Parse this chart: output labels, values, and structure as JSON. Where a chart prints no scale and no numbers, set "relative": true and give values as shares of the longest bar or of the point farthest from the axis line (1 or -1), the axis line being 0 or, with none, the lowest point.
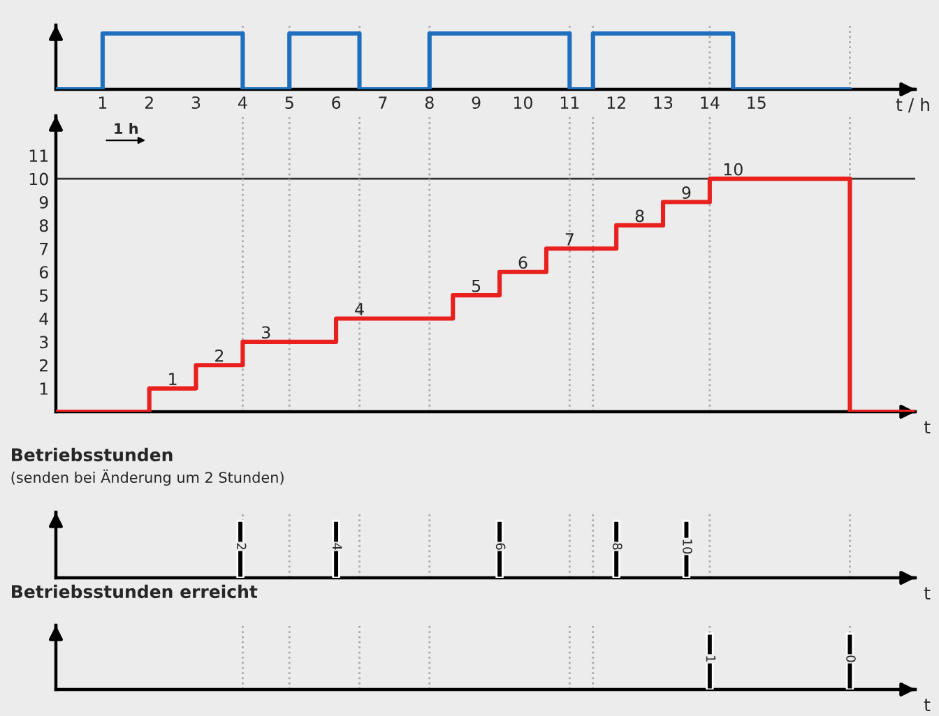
{
  "chart_data": [
    {
      "type": "step",
      "relative": true,
      "xlabel": "t / h",
      "xlim": [
        0,
        18.4
      ],
      "xticks": [
        1,
        2,
        3,
        4,
        5,
        6,
        7,
        8,
        9,
        10,
        11,
        12,
        13,
        14,
        15
      ],
      "tick_labels": "x",
      "x": [
        0,
        1,
        4,
        5,
        6.5,
        8,
        11,
        11.5,
        14.5,
        17
      ],
      "series": [
        {
          "color": "#1f6fbf",
          "values": [
            0,
            1,
            0,
            1,
            0,
            1,
            0,
            1,
            0,
            0
          ]
        }
      ],
      "ref_lines": [
        {
          "axis": "x",
          "value": 4,
          "color": "#aaaaaa",
          "line_style": "dotted"
        },
        {
          "axis": "x",
          "value": 5,
          "color": "#aaaaaa",
          "line_style": "dotted"
        },
        {
          "axis": "x",
          "value": 6.5,
          "color": "#aaaaaa",
          "line_style": "dotted"
        },
        {
          "axis": "x",
          "value": 8,
          "color": "#aaaaaa",
          "line_style": "dotted"
        },
        {
          "axis": "x",
          "value": 11,
          "color": "#aaaaaa",
          "line_style": "dotted"
        },
        {
          "axis": "x",
          "value": 11.5,
          "color": "#aaaaaa",
          "line_style": "dotted"
        },
        {
          "axis": "x",
          "value": 14,
          "color": "#aaaaaa",
          "line_style": "dotted"
        },
        {
          "axis": "x",
          "value": 17,
          "color": "#aaaaaa",
          "line_style": "dotted"
        }
      ]
    },
    {
      "type": "step",
      "xlabel": "t",
      "xlim": [
        0,
        18.4
      ],
      "ylim": [
        0,
        12.7
      ],
      "yticks": [
        1,
        2,
        3,
        4,
        5,
        6,
        7,
        8,
        9,
        10,
        11
      ],
      "tick_labels": "y",
      "x": [
        0,
        2,
        3,
        4,
        6,
        8.5,
        9.5,
        10.5,
        12,
        13,
        14,
        17,
        18.4
      ],
      "series": [
        {
          "color": "#e8201e",
          "values": [
            0,
            1,
            2,
            3,
            4,
            5,
            6,
            7,
            8,
            9,
            10,
            0,
            0
          ],
          "value_labels": [
            null,
            "1",
            "2",
            "3",
            "4",
            "5",
            "6",
            "7",
            "8",
            "9",
            "10",
            null,
            null
          ]
        }
      ],
      "annotations": [
        "1 h"
      ],
      "ref_lines": [
        {
          "axis": "y",
          "value": 10,
          "color": "#333333",
          "line_style": "solid"
        },
        {
          "axis": "x",
          "value": 4,
          "color": "#aaaaaa",
          "line_style": "dotted"
        },
        {
          "axis": "x",
          "value": 5,
          "color": "#aaaaaa",
          "line_style": "dotted"
        },
        {
          "axis": "x",
          "value": 6.5,
          "color": "#aaaaaa",
          "line_style": "dotted"
        },
        {
          "axis": "x",
          "value": 8,
          "color": "#aaaaaa",
          "line_style": "dotted"
        },
        {
          "axis": "x",
          "value": 11,
          "color": "#aaaaaa",
          "line_style": "dotted"
        },
        {
          "axis": "x",
          "value": 11.5,
          "color": "#aaaaaa",
          "line_style": "dotted"
        },
        {
          "axis": "x",
          "value": 14,
          "color": "#aaaaaa",
          "line_style": "dotted"
        },
        {
          "axis": "x",
          "value": 17,
          "color": "#aaaaaa",
          "line_style": "dotted"
        }
      ]
    },
    {
      "type": "bar",
      "relative": true,
      "title": "Betriebsstunden",
      "subtitle": "(senden bei Änderung um 2 Stunden)",
      "xlabel": "t",
      "xlim": [
        0,
        18.4
      ],
      "tick_labels": false,
      "x": [
        3.95,
        6,
        9.5,
        12,
        13.5
      ],
      "series": [
        {
          "color": "#000000",
          "values": [
            1,
            1,
            1,
            1,
            1
          ]
        }
      ],
      "annotations": [
        {
          "text": "2",
          "x": 3.95,
          "y": 0.55
        },
        {
          "text": "4",
          "x": 6,
          "y": 0.55
        },
        {
          "text": "6",
          "x": 9.5,
          "y": 0.55
        },
        {
          "text": "8",
          "x": 12,
          "y": 0.55
        },
        {
          "text": "10",
          "x": 13.5,
          "y": 0.55
        }
      ],
      "ref_lines": [
        {
          "axis": "x",
          "value": 4,
          "color": "#aaaaaa",
          "line_style": "dotted"
        },
        {
          "axis": "x",
          "value": 5,
          "color": "#aaaaaa",
          "line_style": "dotted"
        },
        {
          "axis": "x",
          "value": 6.5,
          "color": "#aaaaaa",
          "line_style": "dotted"
        },
        {
          "axis": "x",
          "value": 8,
          "color": "#aaaaaa",
          "line_style": "dotted"
        },
        {
          "axis": "x",
          "value": 11,
          "color": "#aaaaaa",
          "line_style": "dotted"
        },
        {
          "axis": "x",
          "value": 11.5,
          "color": "#aaaaaa",
          "line_style": "dotted"
        },
        {
          "axis": "x",
          "value": 14,
          "color": "#aaaaaa",
          "line_style": "dotted"
        },
        {
          "axis": "x",
          "value": 17,
          "color": "#aaaaaa",
          "line_style": "dotted"
        }
      ]
    },
    {
      "type": "bar",
      "relative": true,
      "title": "Betriebsstunden erreicht",
      "xlabel": "t",
      "xlim": [
        0,
        18.4
      ],
      "tick_labels": false,
      "x": [
        14,
        17
      ],
      "series": [
        {
          "color": "#000000",
          "values": [
            1,
            1
          ]
        }
      ],
      "annotations": [
        {
          "text": "1",
          "x": 14,
          "y": 0.55
        },
        {
          "text": "0",
          "x": 17,
          "y": 0.55
        }
      ],
      "ref_lines": [
        {
          "axis": "x",
          "value": 4,
          "color": "#aaaaaa",
          "line_style": "dotted"
        },
        {
          "axis": "x",
          "value": 5,
          "color": "#aaaaaa",
          "line_style": "dotted"
        },
        {
          "axis": "x",
          "value": 6.5,
          "color": "#aaaaaa",
          "line_style": "dotted"
        },
        {
          "axis": "x",
          "value": 8,
          "color": "#aaaaaa",
          "line_style": "dotted"
        },
        {
          "axis": "x",
          "value": 11,
          "color": "#aaaaaa",
          "line_style": "dotted"
        },
        {
          "axis": "x",
          "value": 11.5,
          "color": "#aaaaaa",
          "line_style": "dotted"
        },
        {
          "axis": "x",
          "value": 14,
          "color": "#aaaaaa",
          "line_style": "dotted"
        },
        {
          "axis": "x",
          "value": 17,
          "color": "#aaaaaa",
          "line_style": "dotted"
        }
      ]
    }
  ]
}
